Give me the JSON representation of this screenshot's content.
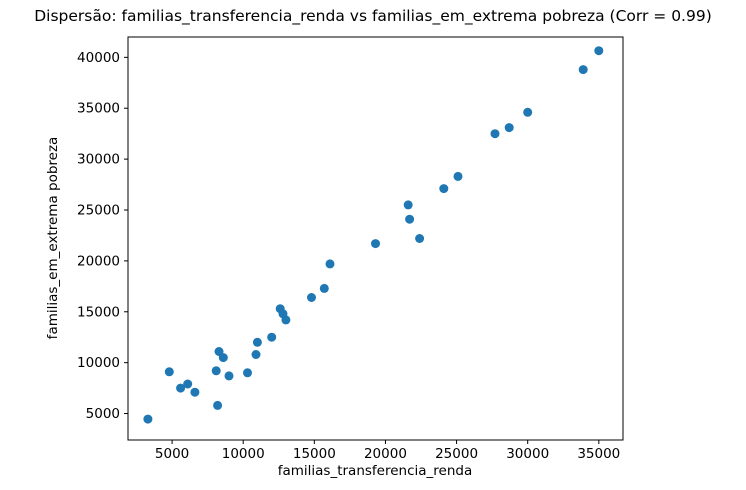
{
  "figure": {
    "background_color": "#ffffff",
    "border_color": "#000000",
    "text_color": "#000000"
  },
  "chart_data": {
    "type": "scatter",
    "title": "Dispersão: familias_transferencia_renda vs familias_em_extrema pobreza (Corr = 0.99)",
    "xlabel": "familias_transferencia_renda",
    "ylabel": "familias_em_extrema pobreza",
    "correlation_shown_in_title": 0.99,
    "marker_color": "#1f77b4",
    "marker_radius_px": 4.5,
    "grid": false,
    "legend_position": "none",
    "xlim": [
      1900,
      36700
    ],
    "ylim": [
      2400,
      42000
    ],
    "x_ticks": [
      5000,
      10000,
      15000,
      20000,
      25000,
      30000,
      35000
    ],
    "y_ticks": [
      5000,
      10000,
      15000,
      20000,
      25000,
      30000,
      35000,
      40000
    ],
    "points": [
      [
        3300,
        4450
      ],
      [
        4800,
        9100
      ],
      [
        5600,
        7500
      ],
      [
        6100,
        7900
      ],
      [
        6600,
        7100
      ],
      [
        8300,
        11100
      ],
      [
        8600,
        10500
      ],
      [
        8100,
        9200
      ],
      [
        9000,
        8700
      ],
      [
        8200,
        5800
      ],
      [
        10300,
        9000
      ],
      [
        10900,
        10800
      ],
      [
        11000,
        12000
      ],
      [
        12000,
        12500
      ],
      [
        12600,
        15300
      ],
      [
        12800,
        14800
      ],
      [
        13000,
        14200
      ],
      [
        14800,
        16400
      ],
      [
        15700,
        17300
      ],
      [
        16100,
        19700
      ],
      [
        19300,
        21700
      ],
      [
        21600,
        25500
      ],
      [
        21700,
        24100
      ],
      [
        22400,
        22200
      ],
      [
        24100,
        27100
      ],
      [
        25100,
        28300
      ],
      [
        27700,
        32500
      ],
      [
        28700,
        33100
      ],
      [
        30000,
        34600
      ],
      [
        33900,
        38800
      ],
      [
        35000,
        40650
      ]
    ]
  }
}
